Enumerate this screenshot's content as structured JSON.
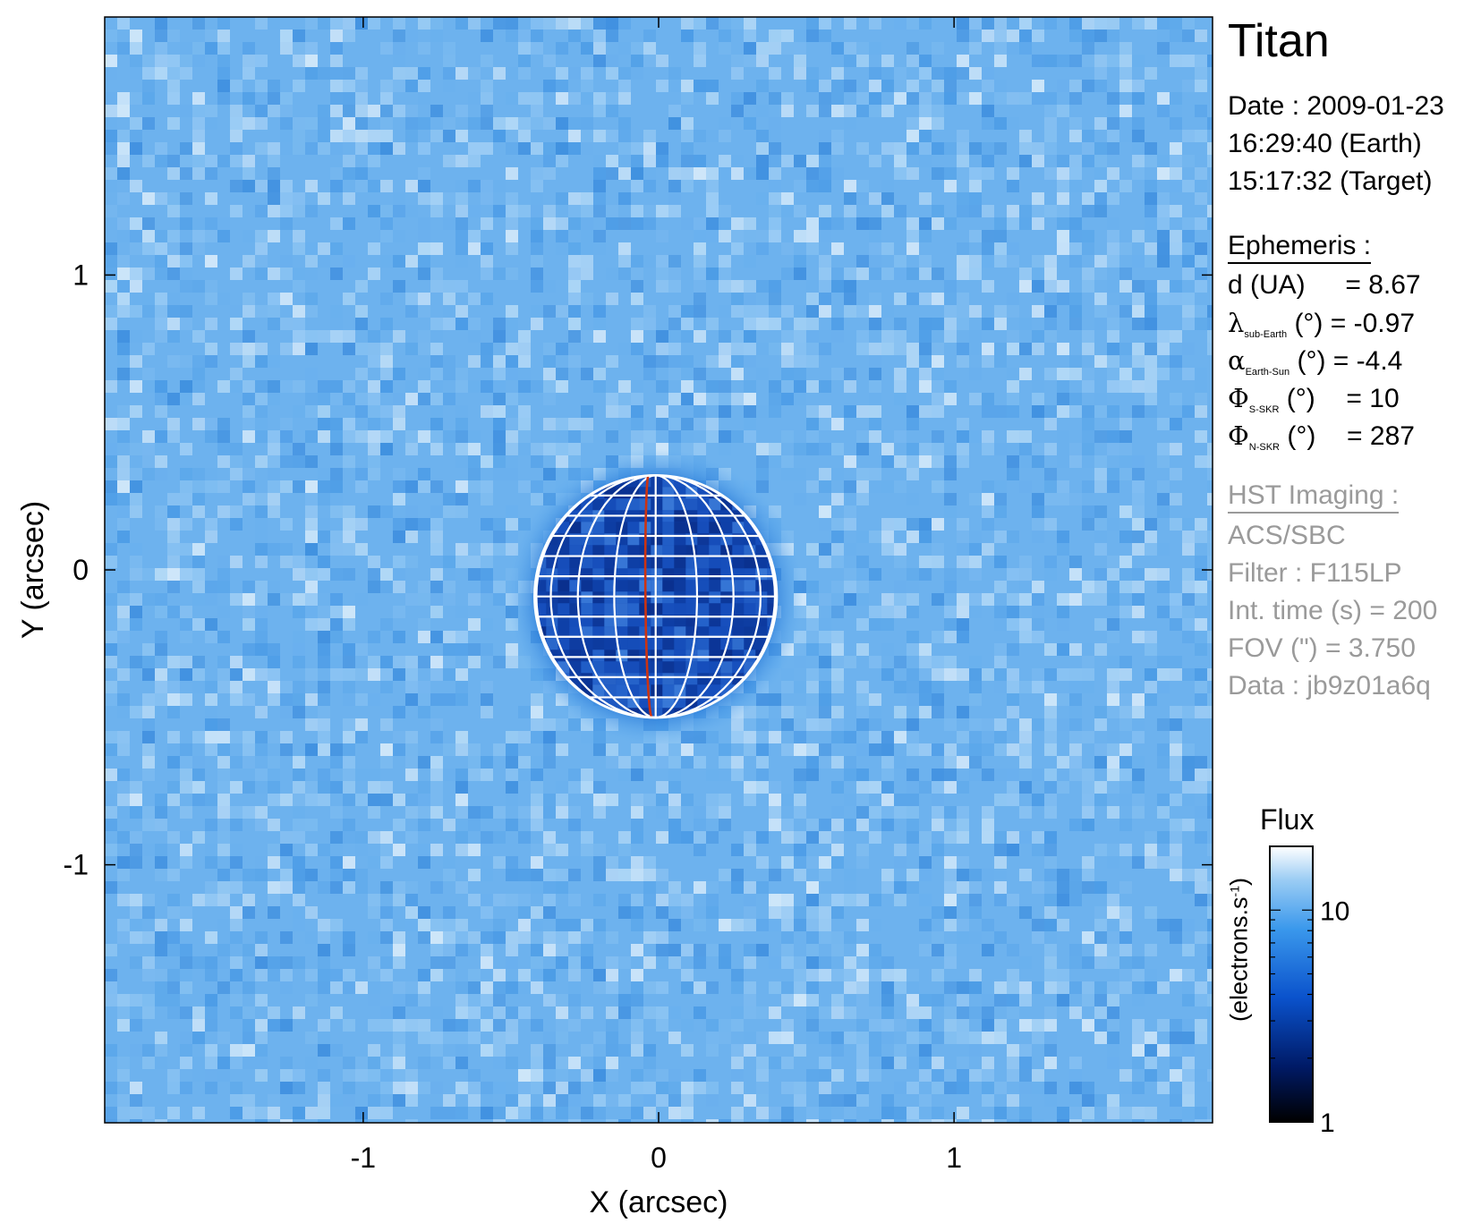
{
  "target": "Titan",
  "date_lines": [
    "Date : 2009-01-23",
    "16:29:40 (Earth)",
    "15:17:32 (Target)"
  ],
  "ephemeris": {
    "heading": "Ephemeris :",
    "d_label": "d (UA)",
    "d_value": "= 8.67",
    "lambda_symbol": "λ",
    "lambda_sub": "sub-Earth",
    "lambda_unit": "(°)",
    "lambda_value": "= -0.97",
    "alpha_symbol": "α",
    "alpha_sub": "Earth-Sun",
    "alpha_unit": "(°)",
    "alpha_value": "= -4.4",
    "phi_s_symbol": "Φ",
    "phi_s_sub": "S-SKR",
    "phi_s_unit": "(°)",
    "phi_s_value": "= 10",
    "phi_n_symbol": "Φ",
    "phi_n_sub": "N-SKR",
    "phi_n_unit": "(°)",
    "phi_n_value": "= 287"
  },
  "instrument": {
    "heading": "HST Imaging :",
    "lines": [
      "ACS/SBC",
      "Filter : F115LP",
      "Int. time (s) = 200",
      "FOV (\") = 3.750",
      "Data : jb9z01a6q"
    ]
  },
  "colorbar": {
    "title": "Flux",
    "unit_main": "(electrons.s",
    "unit_sup": "-1",
    "unit_close": ")",
    "scale": "log",
    "range": [
      1,
      20
    ],
    "ticks": [
      {
        "value": 1,
        "label": "1"
      },
      {
        "value": 10,
        "label": "10"
      }
    ],
    "colors": [
      "#000000",
      "#002a80",
      "#0a58d6",
      "#3b95ea",
      "#93c7f2",
      "#ffffff"
    ]
  },
  "chart_data": {
    "type": "heatmap",
    "title": "Titan",
    "xlabel": "X (arcsec)",
    "ylabel": "Y (arcsec)",
    "xlim": [
      -1.875,
      1.875
    ],
    "ylim": [
      -1.875,
      1.875
    ],
    "xticks": [
      {
        "value": -1,
        "label": "-1"
      },
      {
        "value": 0,
        "label": "0"
      },
      {
        "value": 1,
        "label": "1"
      }
    ],
    "yticks": [
      {
        "value": 1,
        "label": "1"
      },
      {
        "value": 0,
        "label": "0"
      },
      {
        "value": -1,
        "label": "-1"
      }
    ],
    "background_flux": 14,
    "disk": {
      "center_x": -0.01,
      "center_y": -0.09,
      "radius_arcsec": 0.41,
      "flux": 6,
      "halo_radius_arcsec": 0.5
    },
    "grid_overlay": {
      "color": "#ffffff",
      "meridian_color": "#cc3311",
      "latitude_lines": 12,
      "longitude_lines": 9
    }
  }
}
